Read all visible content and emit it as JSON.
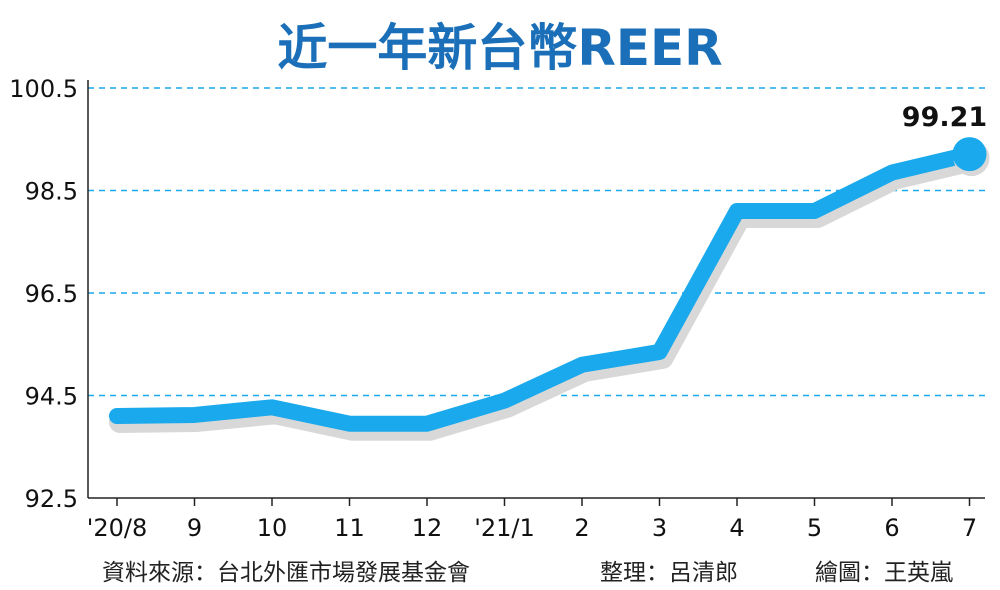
{
  "chart_data": {
    "type": "line",
    "title": "近一年新台幣REER",
    "categories": [
      "'20/8",
      "9",
      "10",
      "11",
      "12",
      "'21/1",
      "2",
      "3",
      "4",
      "5",
      "6",
      "7"
    ],
    "series": [
      {
        "values": [
          94.1,
          94.12,
          94.27,
          93.95,
          93.95,
          94.4,
          95.1,
          95.35,
          98.1,
          98.1,
          98.85,
          99.21
        ]
      }
    ],
    "ylim": [
      92.5,
      100.5
    ],
    "yticks": [
      92.5,
      94.5,
      96.5,
      98.5,
      100.5
    ],
    "ytick_labels": [
      "92.5",
      "94.5",
      "96.5",
      "98.5",
      "100.5"
    ],
    "grid": "dashed horizontal",
    "annotation": {
      "text": "99.21",
      "index": 11
    },
    "line_color": "#19a9ec",
    "title_color": "#1a6fb8",
    "grid_color": "#19a9ec"
  },
  "footer": {
    "source": "資料來源：台北外匯市場發展基金會",
    "editor": "整理：呂清郎",
    "artist": "繪圖：王英嵐"
  }
}
